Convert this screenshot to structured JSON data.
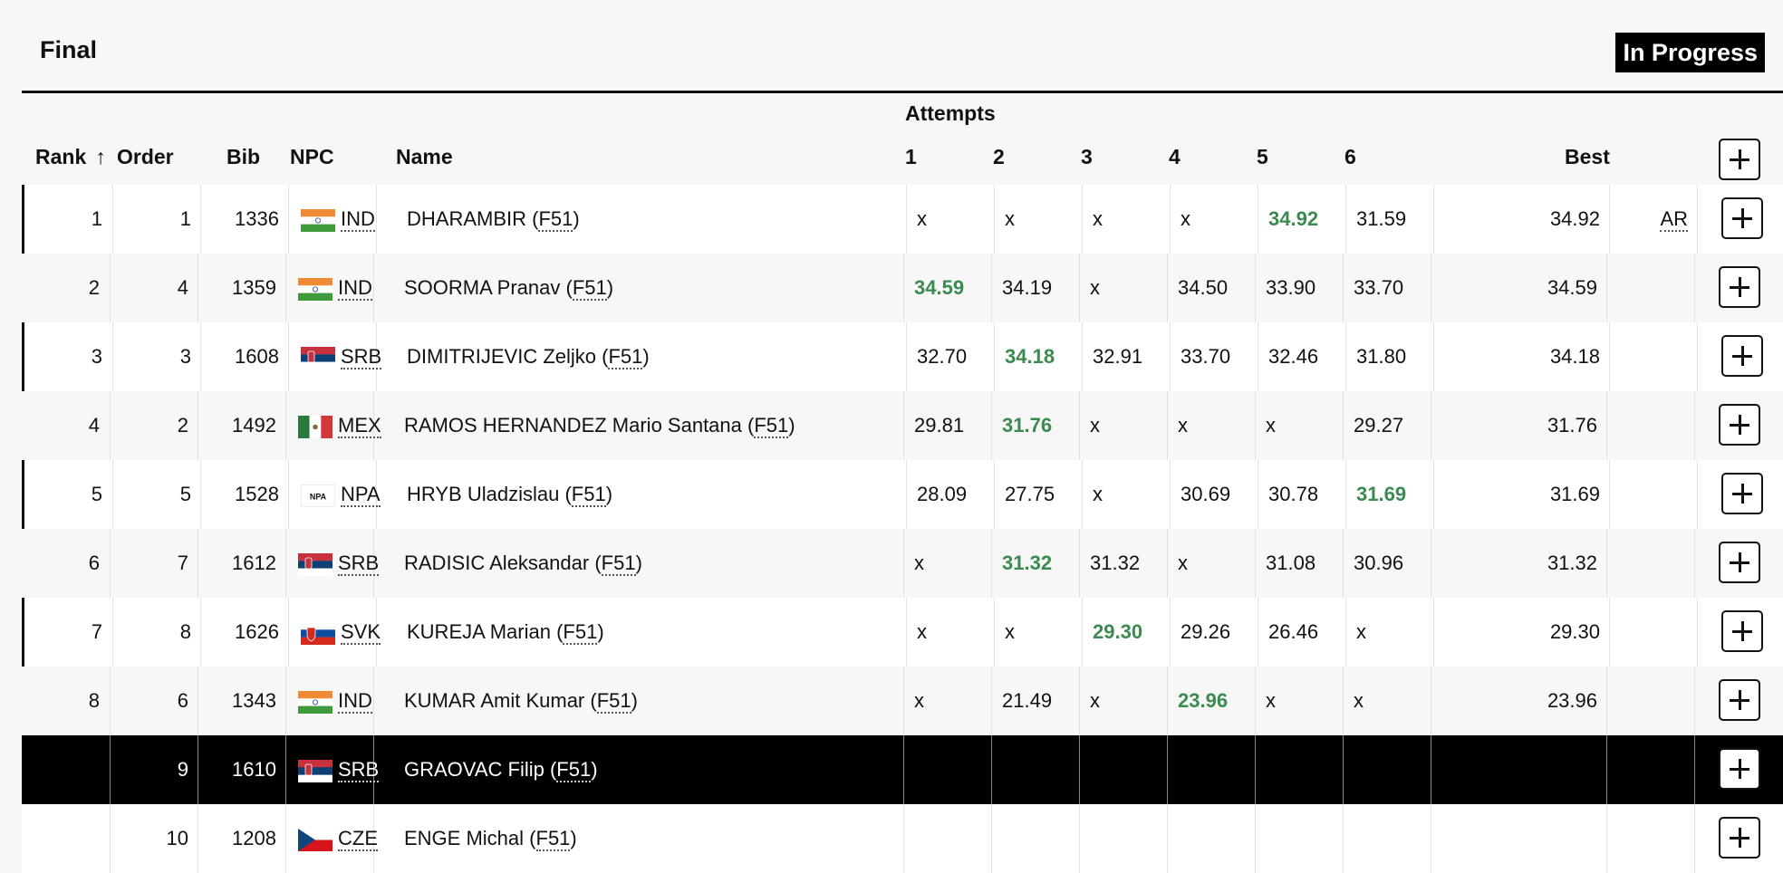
{
  "event": {
    "title": "Final",
    "status": "In Progress"
  },
  "columns": {
    "rank": "Rank",
    "sort_arrow": "↑",
    "order": "Order",
    "bib": "Bib",
    "npc": "NPC",
    "name": "Name",
    "attempts": "Attempts",
    "attempt_numbers": [
      "1",
      "2",
      "3",
      "4",
      "5",
      "6"
    ],
    "best": "Best"
  },
  "rows": [
    {
      "rank": "1",
      "order": "1",
      "bib": "1336",
      "npc": "IND",
      "flag": "ind",
      "athlete": "DHARAMBIR",
      "class": "F51",
      "attempts": [
        "x",
        "x",
        "x",
        "x",
        "34.92",
        "31.59"
      ],
      "best_attempt_index": 4,
      "best": "34.92",
      "record": "AR"
    },
    {
      "rank": "2",
      "order": "4",
      "bib": "1359",
      "npc": "IND",
      "flag": "ind",
      "athlete": "SOORMA Pranav",
      "class": "F51",
      "attempts": [
        "34.59",
        "34.19",
        "x",
        "34.50",
        "33.90",
        "33.70"
      ],
      "best_attempt_index": 0,
      "best": "34.59",
      "record": ""
    },
    {
      "rank": "3",
      "order": "3",
      "bib": "1608",
      "npc": "SRB",
      "flag": "srb",
      "athlete": "DIMITRIJEVIC Zeljko",
      "class": "F51",
      "attempts": [
        "32.70",
        "34.18",
        "32.91",
        "33.70",
        "32.46",
        "31.80"
      ],
      "best_attempt_index": 1,
      "best": "34.18",
      "record": ""
    },
    {
      "rank": "4",
      "order": "2",
      "bib": "1492",
      "npc": "MEX",
      "flag": "mex",
      "athlete": "RAMOS HERNANDEZ Mario Santana",
      "class": "F51",
      "attempts": [
        "29.81",
        "31.76",
        "x",
        "x",
        "x",
        "29.27"
      ],
      "best_attempt_index": 1,
      "best": "31.76",
      "record": ""
    },
    {
      "rank": "5",
      "order": "5",
      "bib": "1528",
      "npc": "NPA",
      "flag": "npa",
      "athlete": "HRYB Uladzislau",
      "class": "F51",
      "attempts": [
        "28.09",
        "27.75",
        "x",
        "30.69",
        "30.78",
        "31.69"
      ],
      "best_attempt_index": 5,
      "best": "31.69",
      "record": ""
    },
    {
      "rank": "6",
      "order": "7",
      "bib": "1612",
      "npc": "SRB",
      "flag": "srb",
      "athlete": "RADISIC Aleksandar",
      "class": "F51",
      "attempts": [
        "x",
        "31.32",
        "31.32",
        "x",
        "31.08",
        "30.96"
      ],
      "best_attempt_index": 1,
      "best": "31.32",
      "record": ""
    },
    {
      "rank": "7",
      "order": "8",
      "bib": "1626",
      "npc": "SVK",
      "flag": "svk",
      "athlete": "KUREJA Marian",
      "class": "F51",
      "attempts": [
        "x",
        "x",
        "29.30",
        "29.26",
        "26.46",
        "x"
      ],
      "best_attempt_index": 2,
      "best": "29.30",
      "record": ""
    },
    {
      "rank": "8",
      "order": "6",
      "bib": "1343",
      "npc": "IND",
      "flag": "ind",
      "athlete": "KUMAR Amit Kumar",
      "class": "F51",
      "attempts": [
        "x",
        "21.49",
        "x",
        "23.96",
        "x",
        "x"
      ],
      "best_attempt_index": 3,
      "best": "23.96",
      "record": ""
    },
    {
      "rank": "",
      "order": "9",
      "bib": "1610",
      "npc": "SRB",
      "flag": "srb",
      "athlete": "GRAOVAC Filip",
      "class": "F51",
      "attempts": [
        "",
        "",
        "",
        "",
        "",
        ""
      ],
      "best_attempt_index": -1,
      "best": "",
      "record": ""
    },
    {
      "rank": "",
      "order": "10",
      "bib": "1208",
      "npc": "CZE",
      "flag": "cze",
      "athlete": "ENGE Michal",
      "class": "F51",
      "attempts": [
        "",
        "",
        "",
        "",
        "",
        ""
      ],
      "best_attempt_index": -1,
      "best": "",
      "record": ""
    }
  ],
  "flag_labels": {
    "npa": "NPA"
  },
  "colors": {
    "best_attempt": "#3b8a4f",
    "active_row_bg": "#000000",
    "status_bg": "#000000"
  },
  "icons": {
    "expand": "plus-icon"
  }
}
